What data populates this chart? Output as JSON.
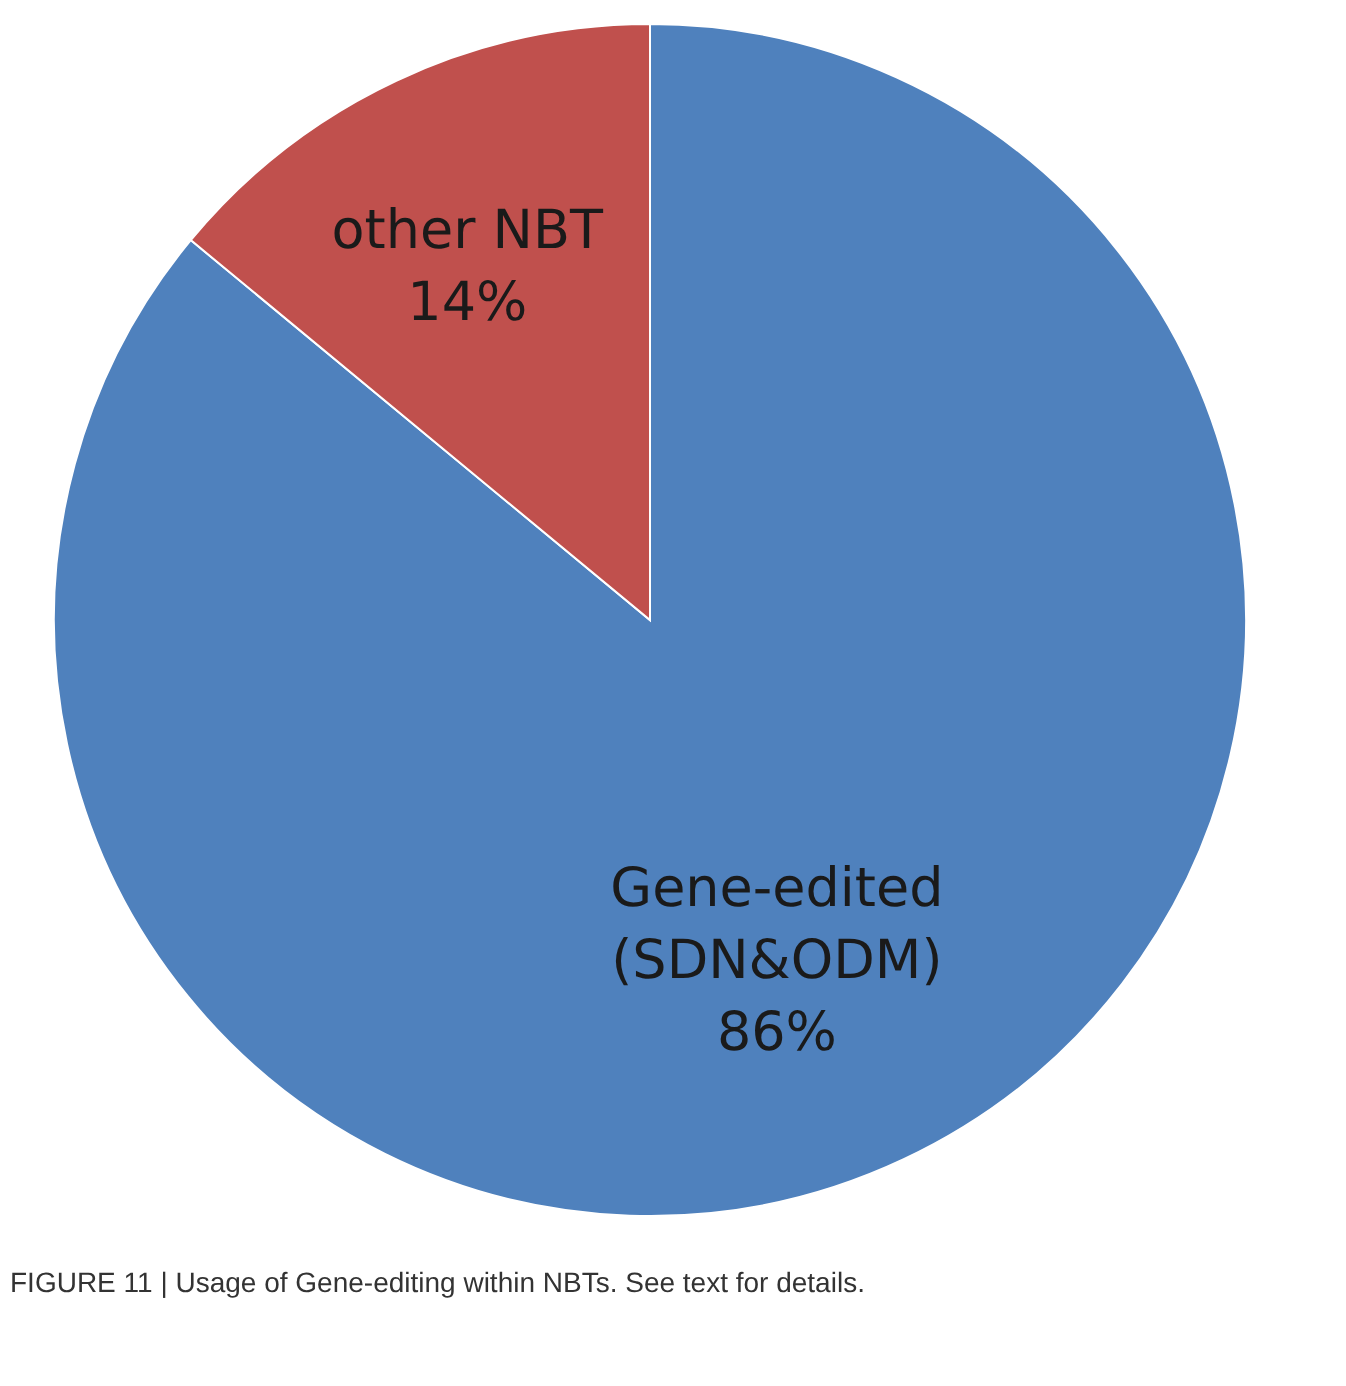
{
  "chart_data": {
    "type": "pie",
    "categories": [
      "Gene-edited\n(SDN&ODM)",
      "other NBT"
    ],
    "values": [
      86,
      14
    ],
    "colors": [
      "#4f81bd",
      "#c0504d"
    ],
    "value_labels": [
      "86%",
      "14%"
    ],
    "legend": false,
    "annotations": [
      "FIGURE 11 | Usage of Gene-editing within NBTs. See text for details."
    ]
  }
}
